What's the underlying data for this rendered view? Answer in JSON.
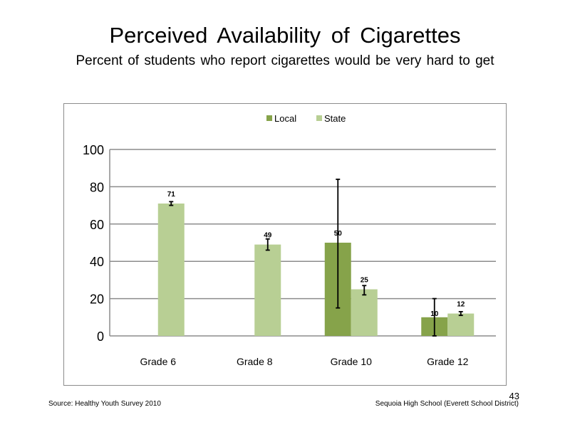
{
  "slide": {
    "title": "Perceived Availability of Cigarettes",
    "subtitle": "Percent of students who report cigarettes would be very hard to get",
    "source": "Source: Healthy Youth Survey 2010",
    "school": "Sequoia High School (Everett School District)",
    "page_number": "43"
  },
  "colors": {
    "local": "#86a34a",
    "state": "#b8cf94",
    "gridline": "#8c8c8c",
    "error_bar": "#000000"
  },
  "chart_data": {
    "type": "bar",
    "categories": [
      "Grade 6",
      "Grade 8",
      "Grade 10",
      "Grade 12"
    ],
    "series": [
      {
        "name": "Local",
        "values": [
          null,
          null,
          50,
          10
        ],
        "labels": [
          "",
          "",
          "50",
          "10"
        ],
        "error_low": [
          null,
          null,
          15,
          0
        ],
        "error_high": [
          null,
          null,
          84,
          20
        ]
      },
      {
        "name": "State",
        "values": [
          71,
          49,
          25,
          12
        ],
        "labels": [
          "71",
          "49",
          "25",
          "12"
        ],
        "error_low": [
          70,
          46,
          22,
          11
        ],
        "error_high": [
          72,
          52,
          27,
          13
        ]
      }
    ],
    "ylim": [
      0,
      100
    ],
    "yticks": [
      0,
      20,
      40,
      60,
      80,
      100
    ],
    "ytick_labels": [
      "0",
      "20",
      "40",
      "60",
      "80",
      "100"
    ],
    "grid": true,
    "legend": "top-center"
  }
}
